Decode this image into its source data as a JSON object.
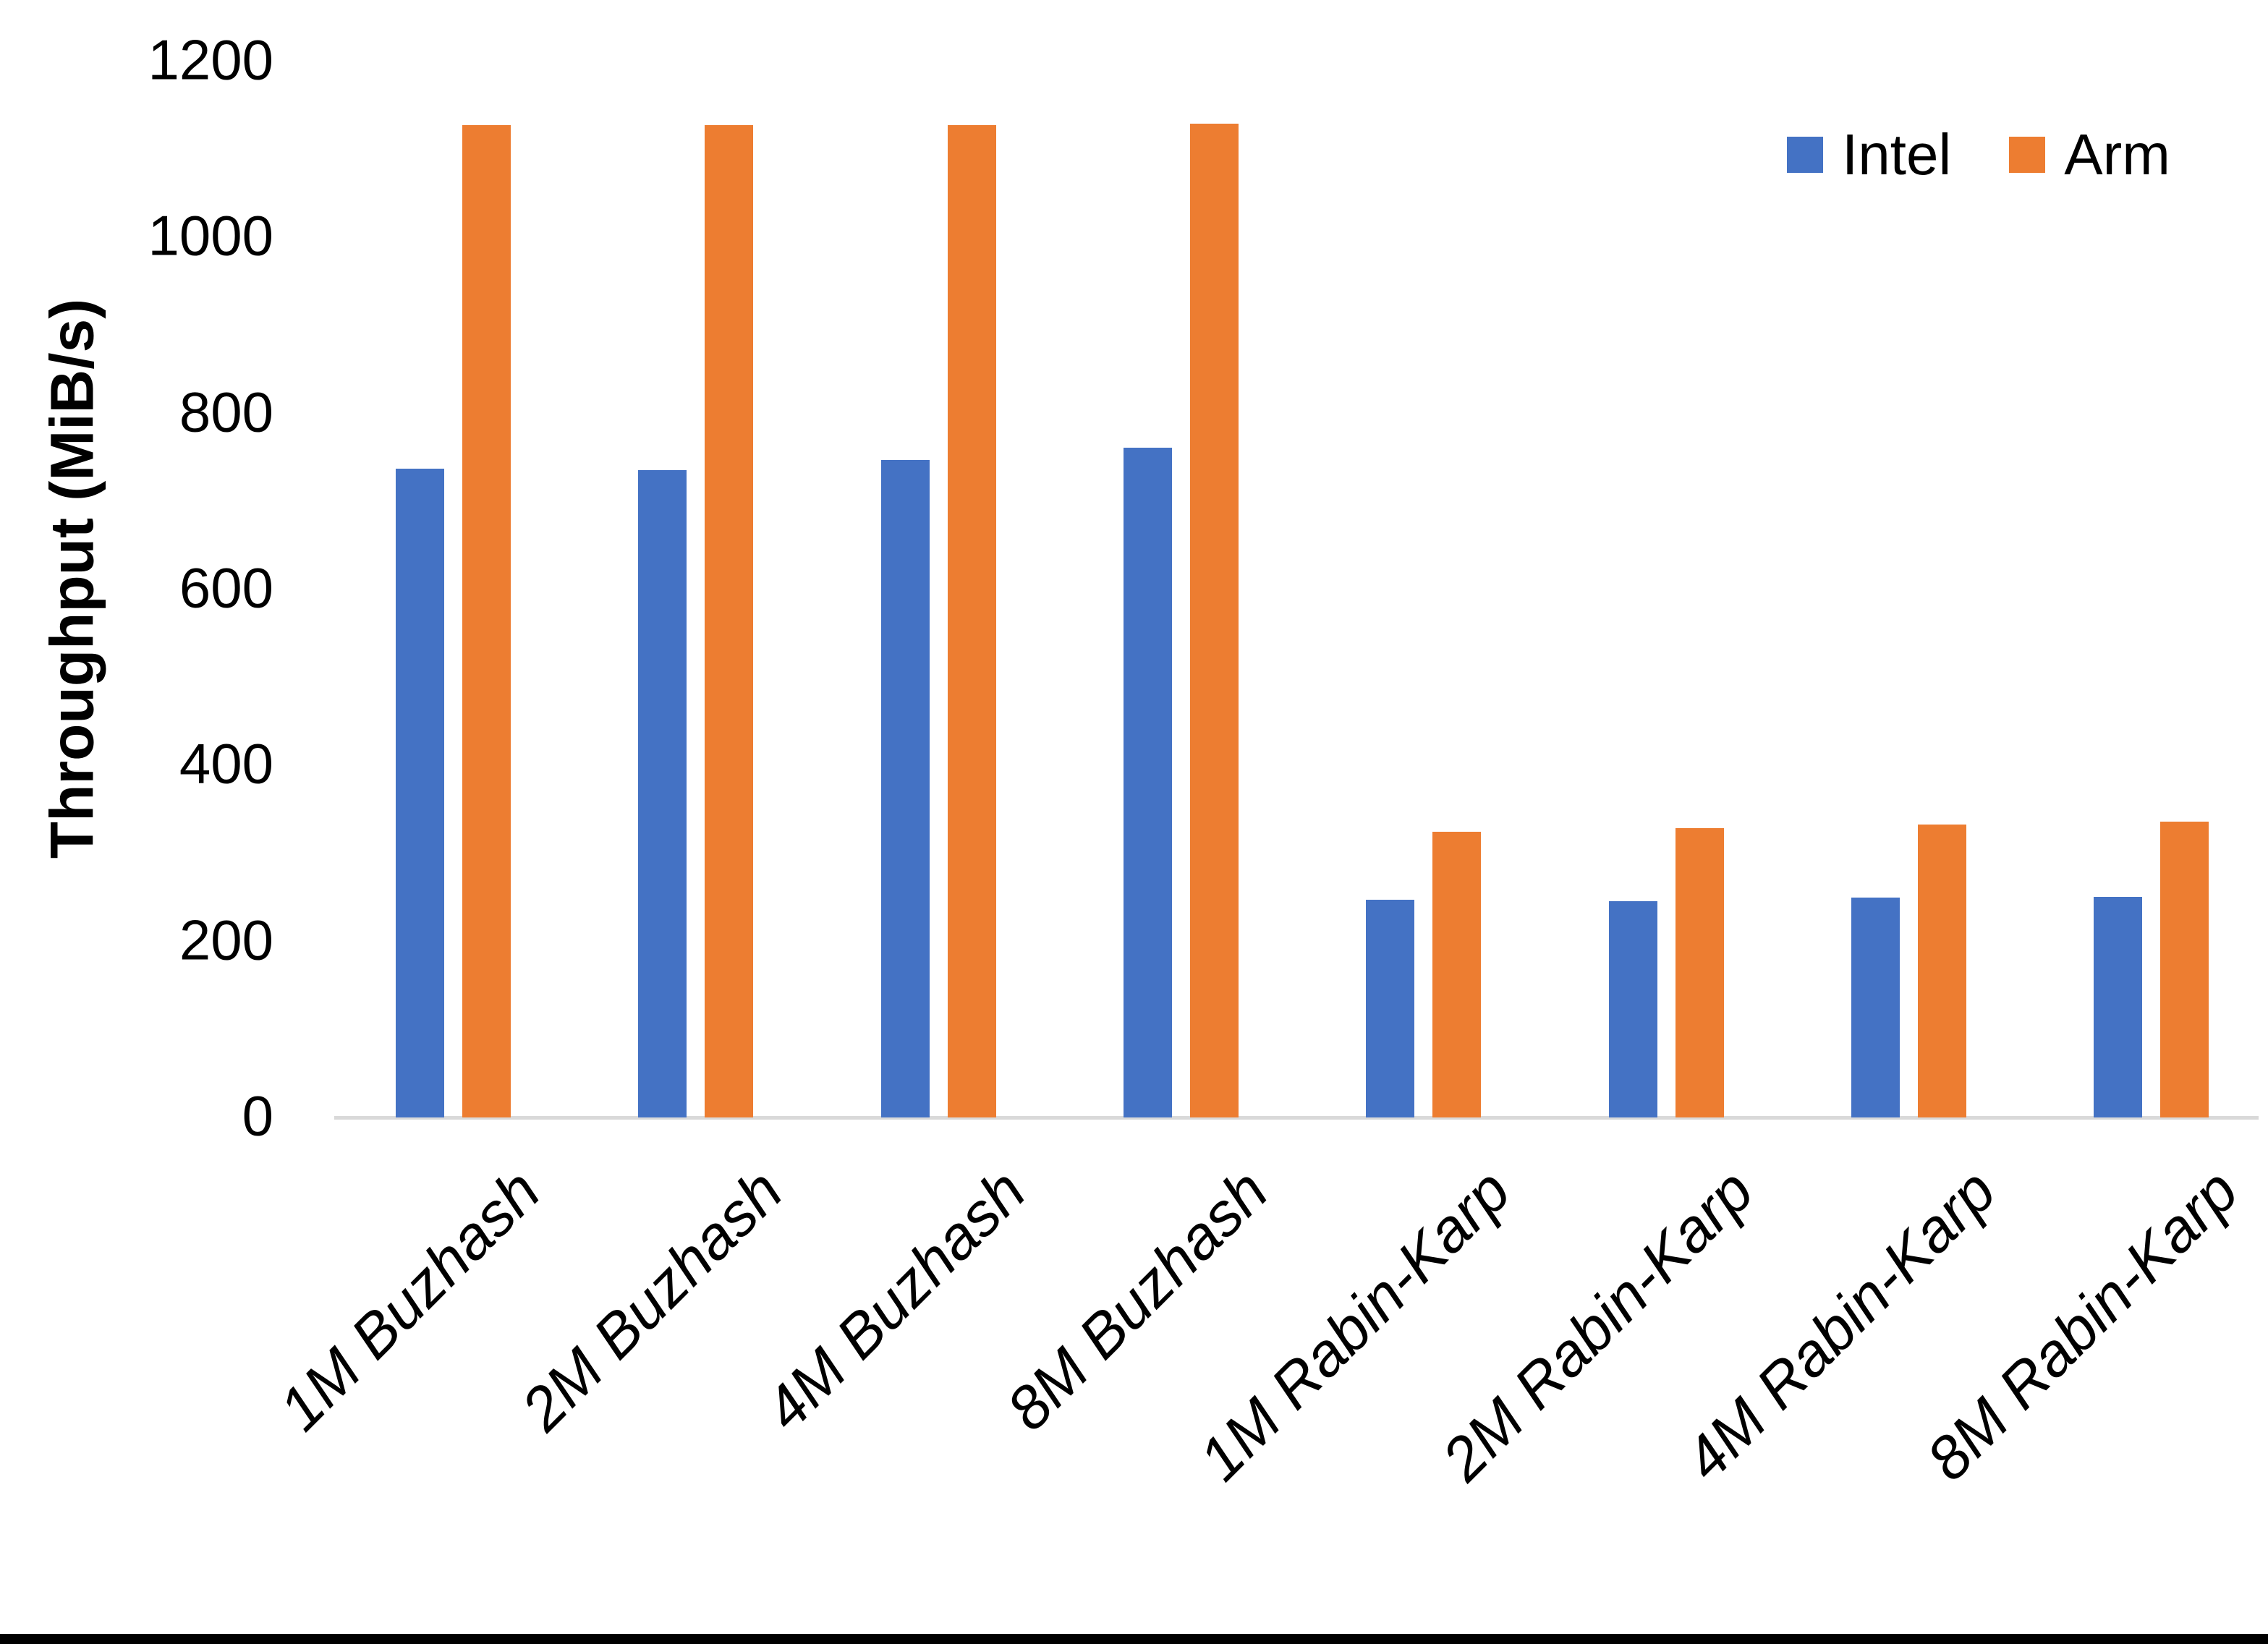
{
  "chart_data": {
    "type": "bar",
    "title": "",
    "ylabel": "Throughput (MiB/s)",
    "xlabel": "",
    "categories": [
      "1M Buzhash",
      "2M Buzhash",
      "4M Buzhash",
      "8M Buzhash",
      "1M Rabin-Karp",
      "2M Rabin-Karp",
      "4M Rabin-Karp",
      "8M Rabin-Karp"
    ],
    "series": [
      {
        "name": "Intel",
        "color": "#4472C4",
        "values": [
          737,
          736,
          747,
          761,
          247,
          246,
          250,
          251
        ]
      },
      {
        "name": "Arm",
        "color": "#ED7D31",
        "values": [
          1128,
          1128,
          1128,
          1129,
          325,
          329,
          333,
          336
        ]
      }
    ],
    "ylim": [
      0,
      1200
    ],
    "y_ticks": [
      0,
      200,
      400,
      600,
      800,
      1000,
      1200
    ],
    "grid": false,
    "legend_position": "top-right",
    "axis_line_color": "#D9D9D9",
    "text_color": "#000000",
    "background_color": "#FFFFFF",
    "bottom_border_color": "#000000"
  }
}
